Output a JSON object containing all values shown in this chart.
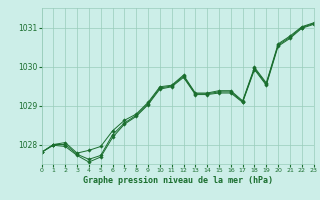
{
  "title": "Graphe pression niveau de la mer (hPa)",
  "bg_color": "#cceee8",
  "grid_color": "#99ccbb",
  "line_color": "#1a6e2e",
  "x_min": 0,
  "x_max": 23,
  "y_min": 1027.5,
  "y_max": 1031.5,
  "yticks": [
    1028,
    1029,
    1030,
    1031
  ],
  "xticks": [
    0,
    1,
    2,
    3,
    4,
    5,
    6,
    7,
    8,
    9,
    10,
    11,
    12,
    13,
    14,
    15,
    16,
    17,
    18,
    19,
    20,
    21,
    22,
    23
  ],
  "series": {
    "line1": [
      [
        0,
        1027.8
      ],
      [
        1,
        1028.0
      ],
      [
        2,
        1028.0
      ],
      [
        3,
        1027.75
      ],
      [
        4,
        1027.62
      ],
      [
        5,
        1027.72
      ],
      [
        6,
        1028.25
      ],
      [
        7,
        1028.55
      ],
      [
        8,
        1028.75
      ],
      [
        9,
        1029.05
      ],
      [
        10,
        1029.45
      ],
      [
        11,
        1029.5
      ],
      [
        12,
        1029.75
      ],
      [
        13,
        1029.3
      ],
      [
        14,
        1029.3
      ],
      [
        15,
        1029.35
      ],
      [
        16,
        1029.35
      ],
      [
        17,
        1029.1
      ],
      [
        18,
        1029.95
      ],
      [
        19,
        1029.55
      ],
      [
        20,
        1030.55
      ],
      [
        21,
        1030.75
      ],
      [
        22,
        1031.0
      ],
      [
        23,
        1031.1
      ]
    ],
    "line2": [
      [
        0,
        1027.8
      ],
      [
        1,
        1028.0
      ],
      [
        2,
        1028.05
      ],
      [
        3,
        1027.78
      ],
      [
        4,
        1027.85
      ],
      [
        5,
        1027.95
      ],
      [
        6,
        1028.35
      ],
      [
        7,
        1028.62
      ],
      [
        8,
        1028.78
      ],
      [
        9,
        1029.08
      ],
      [
        10,
        1029.48
      ],
      [
        11,
        1029.52
      ],
      [
        12,
        1029.78
      ],
      [
        13,
        1029.32
      ],
      [
        14,
        1029.32
      ],
      [
        15,
        1029.38
      ],
      [
        16,
        1029.38
      ],
      [
        17,
        1029.12
      ],
      [
        18,
        1029.98
      ],
      [
        19,
        1029.58
      ],
      [
        20,
        1030.58
      ],
      [
        21,
        1030.78
      ],
      [
        22,
        1031.02
      ],
      [
        23,
        1031.12
      ]
    ],
    "line3": [
      [
        0,
        1027.8
      ],
      [
        1,
        1027.98
      ],
      [
        2,
        1027.95
      ],
      [
        3,
        1027.72
      ],
      [
        4,
        1027.55
      ],
      [
        5,
        1027.68
      ],
      [
        6,
        1028.18
      ],
      [
        7,
        1028.52
      ],
      [
        8,
        1028.72
      ],
      [
        9,
        1029.02
      ],
      [
        10,
        1029.42
      ],
      [
        11,
        1029.48
      ],
      [
        12,
        1029.72
      ],
      [
        13,
        1029.28
      ],
      [
        14,
        1029.28
      ],
      [
        15,
        1029.32
      ],
      [
        16,
        1029.32
      ],
      [
        17,
        1029.08
      ],
      [
        18,
        1029.92
      ],
      [
        19,
        1029.52
      ],
      [
        20,
        1030.52
      ],
      [
        21,
        1030.72
      ],
      [
        22,
        1030.98
      ],
      [
        23,
        1031.08
      ]
    ]
  }
}
